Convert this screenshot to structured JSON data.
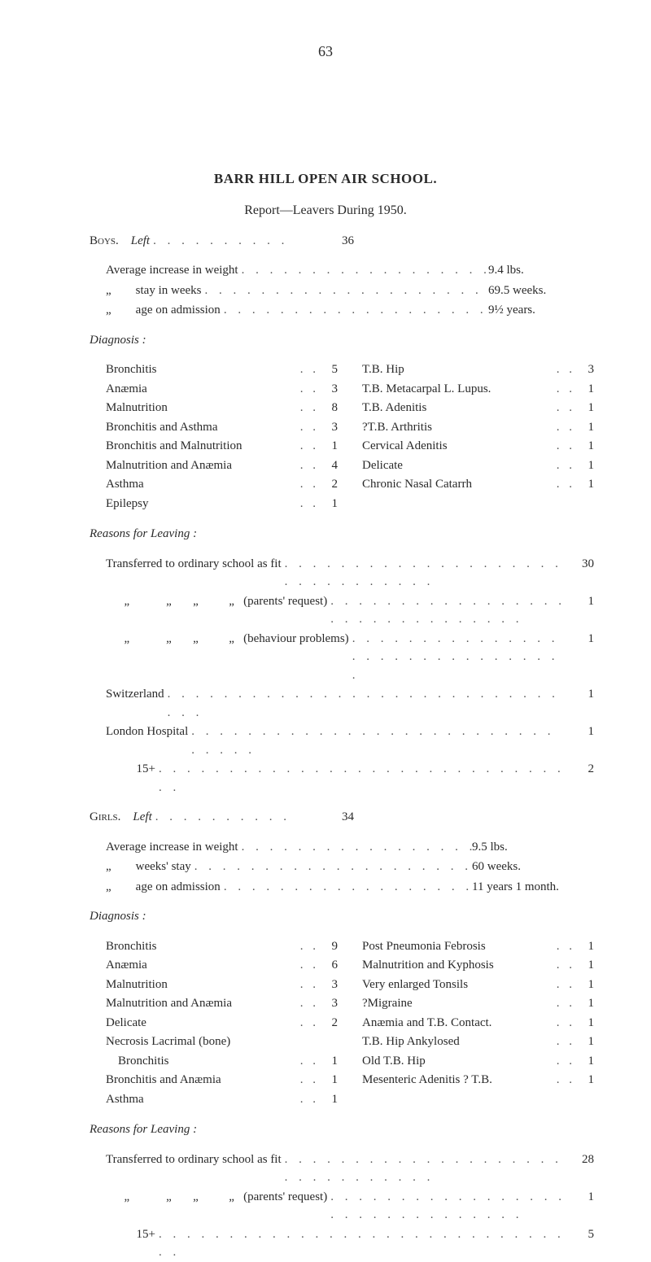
{
  "page_number": "63",
  "title": "BARR HILL OPEN AIR SCHOOL.",
  "subtitle": "Report—Leavers During 1950.",
  "boys": {
    "header_caps": "Boys.",
    "header_italic": "Left",
    "left_value": "36",
    "averages": [
      {
        "label": "Average increase in weight",
        "value": "9.4 lbs."
      },
      {
        "label": "„        stay in weeks",
        "value": "69.5 weeks."
      },
      {
        "label": "„        age on admission",
        "value": "9½ years."
      }
    ],
    "diagnosis_title": "Diagnosis :",
    "diagnosis_left": [
      {
        "label": "Bronchitis",
        "value": "5"
      },
      {
        "label": "Anæmia",
        "value": "3"
      },
      {
        "label": "Malnutrition",
        "value": "8"
      },
      {
        "label": "Bronchitis and Asthma",
        "value": "3"
      },
      {
        "label": "Bronchitis and Malnutrition",
        "value": "1"
      },
      {
        "label": "Malnutrition and Anæmia",
        "value": "4"
      },
      {
        "label": "Asthma",
        "value": "2"
      },
      {
        "label": "Epilepsy",
        "value": "1"
      }
    ],
    "diagnosis_right": [
      {
        "label": "T.B. Hip",
        "value": "3"
      },
      {
        "label": "T.B. Metacarpal L. Lupus.",
        "value": "1"
      },
      {
        "label": "T.B. Adenitis",
        "value": "1"
      },
      {
        "label": "?T.B. Arthritis",
        "value": "1"
      },
      {
        "label": "Cervical Adenitis",
        "value": "1"
      },
      {
        "label": "Delicate",
        "value": "1"
      },
      {
        "label": "Chronic Nasal Catarrh",
        "value": "1"
      }
    ],
    "reasons_title": "Reasons for Leaving :",
    "reasons": [
      {
        "label": "Transferred to ordinary school as fit",
        "value": "30"
      },
      {
        "label": "      „            „       „          „   (parents' request)",
        "value": "1"
      },
      {
        "label": "      „            „       „          „   (behaviour problems)",
        "value": "1"
      },
      {
        "label": "Switzerland",
        "value": "1"
      },
      {
        "label": "London Hospital",
        "value": "1"
      },
      {
        "label": "          15+",
        "value": "2"
      }
    ]
  },
  "girls": {
    "header_caps": "Girls.",
    "header_italic": "Left",
    "left_value": "34",
    "averages": [
      {
        "label": "Average increase in weight",
        "value": "9.5 lbs."
      },
      {
        "label": "„        weeks' stay",
        "value": "60 weeks."
      },
      {
        "label": "„        age on admission",
        "value": "11 years 1 month."
      }
    ],
    "diagnosis_title": "Diagnosis :",
    "diagnosis_left": [
      {
        "label": "Bronchitis",
        "value": "9"
      },
      {
        "label": "Anæmia",
        "value": "6"
      },
      {
        "label": "Malnutrition",
        "value": "3"
      },
      {
        "label": "Malnutrition and Anæmia",
        "value": "3"
      },
      {
        "label": "Delicate",
        "value": "2"
      },
      {
        "label": "Necrosis Lacrimal (bone)",
        "value": ""
      },
      {
        "label": "    Bronchitis",
        "value": "1"
      },
      {
        "label": "Bronchitis and Anæmia",
        "value": "1"
      },
      {
        "label": "Asthma",
        "value": "1"
      }
    ],
    "diagnosis_right": [
      {
        "label": "Post Pneumonia Febrosis",
        "value": "1"
      },
      {
        "label": "Malnutrition and Kyphosis",
        "value": "1"
      },
      {
        "label": "Very enlarged Tonsils",
        "value": "1"
      },
      {
        "label": "?Migraine",
        "value": "1"
      },
      {
        "label": "Anæmia and T.B. Contact.",
        "value": "1"
      },
      {
        "label": "T.B. Hip Ankylosed",
        "value": "1"
      },
      {
        "label": "Old T.B. Hip",
        "value": "1"
      },
      {
        "label": "Mesenteric Adenitis ? T.B.",
        "value": "1"
      }
    ],
    "reasons_title": "Reasons for Leaving :",
    "reasons": [
      {
        "label": "Transferred to ordinary school as fit",
        "value": "28"
      },
      {
        "label": "      „            „       „          „   (parents' request)",
        "value": "1"
      },
      {
        "label": "          15+",
        "value": "5"
      }
    ]
  }
}
